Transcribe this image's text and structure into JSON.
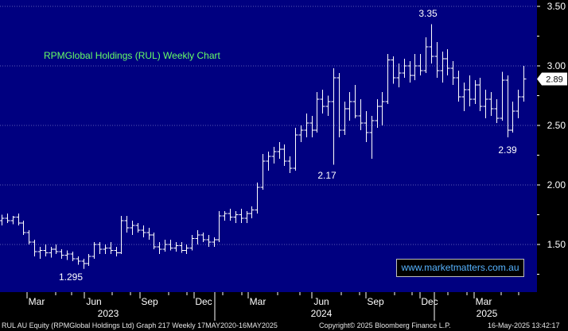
{
  "chart_data": {
    "type": "candlestick",
    "title": "RPMGlobal Holdings (RUL) Weekly Chart",
    "ylim": [
      1.2,
      3.5
    ],
    "y_ticks": [
      "3.50",
      "3.00",
      "2.50",
      "2.00",
      "1.50"
    ],
    "y_tick_values": [
      3.5,
      3.0,
      2.5,
      2.0,
      1.5
    ],
    "x_ticks": [
      "Mar",
      "Jun",
      "Sep",
      "Dec",
      "Mar",
      "Jun",
      "Sep",
      "Dec",
      "Mar"
    ],
    "year_labels": [
      "2023",
      "2024",
      "2025"
    ],
    "last_price_label": "2.89",
    "last_price": 2.89,
    "annotations": [
      {
        "label": "3.35",
        "value": 3.35
      },
      {
        "label": "2.17",
        "value": 2.17
      },
      {
        "label": "2.39",
        "value": 2.39
      },
      {
        "label": "1.295",
        "value": 1.295
      }
    ],
    "ohlc": [
      [
        1.7,
        1.75,
        1.66,
        1.72
      ],
      [
        1.72,
        1.76,
        1.68,
        1.7
      ],
      [
        1.7,
        1.74,
        1.67,
        1.73
      ],
      [
        1.73,
        1.76,
        1.66,
        1.68
      ],
      [
        1.68,
        1.7,
        1.58,
        1.6
      ],
      [
        1.6,
        1.62,
        1.5,
        1.52
      ],
      [
        1.52,
        1.54,
        1.4,
        1.44
      ],
      [
        1.44,
        1.48,
        1.38,
        1.45
      ],
      [
        1.45,
        1.5,
        1.4,
        1.43
      ],
      [
        1.43,
        1.48,
        1.39,
        1.46
      ],
      [
        1.46,
        1.5,
        1.42,
        1.44
      ],
      [
        1.44,
        1.46,
        1.38,
        1.41
      ],
      [
        1.41,
        1.45,
        1.37,
        1.42
      ],
      [
        1.42,
        1.44,
        1.36,
        1.38
      ],
      [
        1.38,
        1.4,
        1.33,
        1.36
      ],
      [
        1.36,
        1.38,
        1.295,
        1.34
      ],
      [
        1.34,
        1.42,
        1.32,
        1.4
      ],
      [
        1.4,
        1.52,
        1.38,
        1.5
      ],
      [
        1.5,
        1.52,
        1.42,
        1.46
      ],
      [
        1.46,
        1.5,
        1.42,
        1.47
      ],
      [
        1.47,
        1.52,
        1.42,
        1.45
      ],
      [
        1.45,
        1.48,
        1.4,
        1.43
      ],
      [
        1.43,
        1.74,
        1.42,
        1.7
      ],
      [
        1.7,
        1.74,
        1.6,
        1.64
      ],
      [
        1.64,
        1.7,
        1.58,
        1.66
      ],
      [
        1.66,
        1.68,
        1.6,
        1.62
      ],
      [
        1.62,
        1.66,
        1.56,
        1.6
      ],
      [
        1.6,
        1.64,
        1.54,
        1.58
      ],
      [
        1.58,
        1.6,
        1.46,
        1.48
      ],
      [
        1.48,
        1.52,
        1.42,
        1.46
      ],
      [
        1.46,
        1.54,
        1.44,
        1.5
      ],
      [
        1.5,
        1.54,
        1.45,
        1.47
      ],
      [
        1.47,
        1.52,
        1.44,
        1.49
      ],
      [
        1.49,
        1.52,
        1.43,
        1.45
      ],
      [
        1.45,
        1.5,
        1.42,
        1.47
      ],
      [
        1.47,
        1.58,
        1.45,
        1.55
      ],
      [
        1.55,
        1.62,
        1.5,
        1.58
      ],
      [
        1.58,
        1.6,
        1.52,
        1.54
      ],
      [
        1.54,
        1.58,
        1.48,
        1.52
      ],
      [
        1.52,
        1.56,
        1.48,
        1.54
      ],
      [
        1.54,
        1.78,
        1.52,
        1.74
      ],
      [
        1.74,
        1.78,
        1.7,
        1.76
      ],
      [
        1.76,
        1.8,
        1.7,
        1.73
      ],
      [
        1.73,
        1.78,
        1.68,
        1.75
      ],
      [
        1.75,
        1.8,
        1.68,
        1.72
      ],
      [
        1.72,
        1.78,
        1.68,
        1.76
      ],
      [
        1.76,
        1.82,
        1.72,
        1.79
      ],
      [
        1.79,
        2.02,
        1.76,
        1.98
      ],
      [
        1.98,
        2.26,
        1.96,
        2.2
      ],
      [
        2.2,
        2.28,
        2.12,
        2.24
      ],
      [
        2.24,
        2.32,
        2.18,
        2.28
      ],
      [
        2.28,
        2.36,
        2.22,
        2.3
      ],
      [
        2.3,
        2.34,
        2.16,
        2.2
      ],
      [
        2.2,
        2.24,
        2.1,
        2.14
      ],
      [
        2.14,
        2.48,
        2.12,
        2.42
      ],
      [
        2.42,
        2.5,
        2.36,
        2.46
      ],
      [
        2.46,
        2.6,
        2.4,
        2.52
      ],
      [
        2.52,
        2.58,
        2.4,
        2.46
      ],
      [
        2.46,
        2.78,
        2.44,
        2.72
      ],
      [
        2.72,
        2.8,
        2.6,
        2.66
      ],
      [
        2.66,
        2.75,
        2.58,
        2.7
      ],
      [
        2.7,
        2.98,
        2.17,
        2.9
      ],
      [
        2.9,
        2.94,
        2.4,
        2.46
      ],
      [
        2.46,
        2.7,
        2.42,
        2.64
      ],
      [
        2.64,
        2.78,
        2.54,
        2.7
      ],
      [
        2.7,
        2.84,
        2.56,
        2.58
      ],
      [
        2.58,
        2.72,
        2.46,
        2.52
      ],
      [
        2.52,
        2.62,
        2.36,
        2.44
      ],
      [
        2.44,
        2.58,
        2.22,
        2.54
      ],
      [
        2.54,
        2.72,
        2.48,
        2.66
      ],
      [
        2.66,
        2.78,
        2.5,
        2.7
      ],
      [
        2.7,
        3.1,
        2.68,
        3.05
      ],
      [
        3.05,
        3.08,
        2.85,
        2.9
      ],
      [
        2.9,
        3.02,
        2.82,
        2.94
      ],
      [
        2.94,
        3.06,
        2.9,
        3.0
      ],
      [
        3.0,
        3.04,
        2.86,
        2.92
      ],
      [
        2.92,
        3.1,
        2.88,
        3.0
      ],
      [
        3.0,
        3.1,
        2.92,
        2.96
      ],
      [
        2.96,
        3.24,
        2.94,
        3.16
      ],
      [
        3.16,
        3.35,
        3.02,
        3.08
      ],
      [
        3.08,
        3.2,
        2.9,
        2.96
      ],
      [
        2.96,
        3.12,
        2.86,
        3.06
      ],
      [
        3.06,
        3.14,
        2.92,
        2.98
      ],
      [
        2.98,
        3.04,
        2.84,
        2.9
      ],
      [
        2.9,
        2.96,
        2.7,
        2.74
      ],
      [
        2.74,
        2.86,
        2.62,
        2.8
      ],
      [
        2.8,
        2.92,
        2.66,
        2.72
      ],
      [
        2.72,
        2.88,
        2.68,
        2.84
      ],
      [
        2.84,
        2.9,
        2.62,
        2.66
      ],
      [
        2.66,
        2.8,
        2.56,
        2.72
      ],
      [
        2.72,
        2.78,
        2.58,
        2.64
      ],
      [
        2.64,
        2.72,
        2.52,
        2.56
      ],
      [
        2.56,
        2.95,
        2.54,
        2.88
      ],
      [
        2.88,
        2.92,
        2.4,
        2.46
      ],
      [
        2.46,
        2.7,
        2.44,
        2.62
      ],
      [
        2.62,
        2.8,
        2.56,
        2.74
      ],
      [
        2.74,
        3.0,
        2.7,
        2.89
      ]
    ]
  },
  "footer": {
    "left": "RUL AU Equity (RPMGlobal Holdings Ltd) Graph 217  Weekly 17MAY2020-16MAY2025",
    "center": "Copyright© 2025 Bloomberg Finance L.P.",
    "right": "16-May-2025 13:42:17"
  },
  "watermark": "www.marketmatters.com.au",
  "colors": {
    "background": "#000080",
    "axis_band": "#000000",
    "candle": "#ffffff",
    "title": "#66ff66",
    "last_price_box": "#ffffff",
    "watermark_text": "#56b3ff"
  }
}
